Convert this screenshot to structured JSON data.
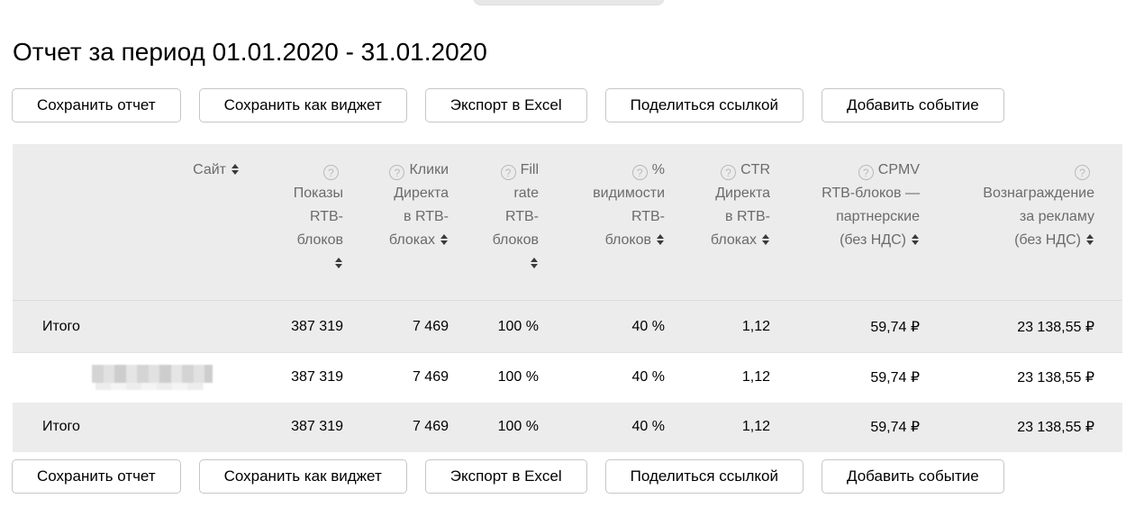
{
  "header": {
    "title": "Отчет за период 01.01.2020 - 31.01.2020"
  },
  "toolbar": {
    "buttons": [
      "Сохранить отчет",
      "Сохранить как виджет",
      "Экспорт в Excel",
      "Поделиться ссылкой",
      "Добавить событие"
    ]
  },
  "icons": {
    "question_glyph": "?"
  },
  "colors": {
    "table_header_bg": "#ececec",
    "total_row_bg": "#ececec",
    "divider": "#dcdcdc",
    "button_border": "#c6c6c6",
    "header_text": "#6b6b6b",
    "help_icon": "#b9b9b9",
    "body_text": "#000000"
  },
  "table": {
    "columns": [
      {
        "id": "site",
        "label": "Сайт",
        "sortable": true,
        "has_help": false
      },
      {
        "id": "rtb-impressions",
        "label": "\nПоказы\nRTB-\nблоков\n",
        "sortable": true,
        "has_help": true
      },
      {
        "id": "direct-clicks",
        "label": "Клики\nДиректа\nв RTB-\nблоках",
        "sortable": true,
        "has_help": true
      },
      {
        "id": "fill-rate",
        "label": "Fill\nrate\nRTB-\nблоков\n",
        "sortable": true,
        "has_help": true
      },
      {
        "id": "visibility-pct",
        "label": "%\nвидимости\nRTB-\nблоков",
        "sortable": true,
        "has_help": true
      },
      {
        "id": "direct-ctr",
        "label": "CTR\nДиректа\nв RTB-\nблоках",
        "sortable": true,
        "has_help": true
      },
      {
        "id": "cpmv",
        "label": "CPMV\nRTB-блоков —\nпартнерские\n(без НДС)",
        "sortable": true,
        "has_help": true
      },
      {
        "id": "reward",
        "label": "\nВознаграждение\nза рекламу\n(без НДС)",
        "sortable": true,
        "has_help": true
      }
    ],
    "rows": [
      {
        "label": "Итого",
        "type": "total",
        "values": [
          "387 319",
          "7 469",
          "100 %",
          "40 %",
          "1,12",
          "59,74 ₽",
          "23 138,55 ₽"
        ]
      },
      {
        "label": "",
        "type": "site-redacted",
        "values": [
          "387 319",
          "7 469",
          "100 %",
          "40 %",
          "1,12",
          "59,74 ₽",
          "23 138,55 ₽"
        ]
      },
      {
        "label": "Итого",
        "type": "total",
        "values": [
          "387 319",
          "7 469",
          "100 %",
          "40 %",
          "1,12",
          "59,74 ₽",
          "23 138,55 ₽"
        ]
      }
    ]
  }
}
